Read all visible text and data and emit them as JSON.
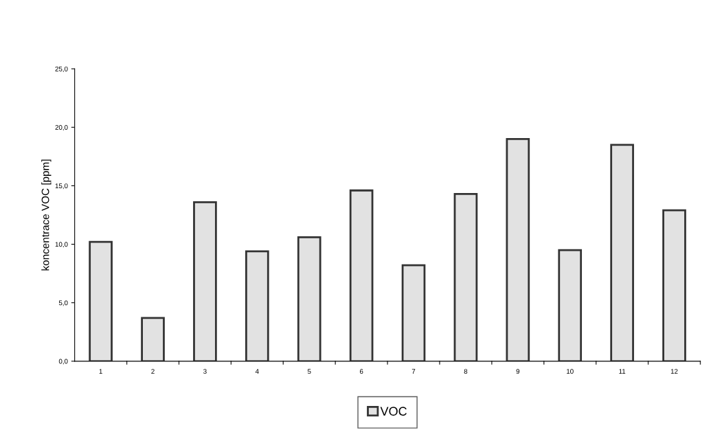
{
  "chart_data": {
    "type": "bar",
    "ylabel": "koncentrace VOC [ppm]",
    "categories": [
      "1",
      "2",
      "3",
      "4",
      "5",
      "6",
      "7",
      "8",
      "9",
      "10",
      "11",
      "12"
    ],
    "series": [
      {
        "name": "VOC",
        "color": "#e2e2e2",
        "values": [
          10.2,
          3.7,
          13.6,
          9.4,
          10.6,
          14.6,
          8.2,
          14.3,
          19.0,
          9.5,
          18.5,
          12.9
        ]
      }
    ],
    "ylim": [
      0,
      25
    ],
    "yticks": [
      {
        "value": 0,
        "label": "0,0"
      },
      {
        "value": 5,
        "label": "5,0"
      },
      {
        "value": 10,
        "label": "10,0"
      },
      {
        "value": 15,
        "label": "15,0"
      },
      {
        "value": 20,
        "label": "20,0"
      },
      {
        "value": 25,
        "label": "25,0"
      }
    ],
    "grid": false,
    "legend": "bottom"
  }
}
